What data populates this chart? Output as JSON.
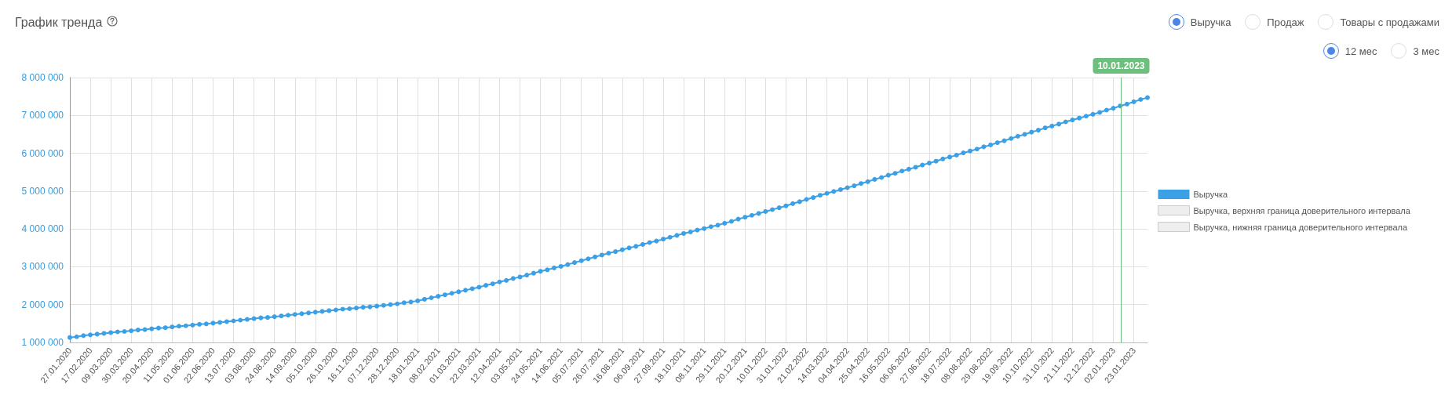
{
  "chart_data": {
    "type": "line",
    "title": "График тренда",
    "annotations": [
      "Выручка",
      "Продаж",
      "Товары с продажами",
      "12 мес",
      "3 мес"
    ],
    "x": [
      "2020-01-27",
      "2020-02-03",
      "2020-02-10",
      "2020-02-17",
      "2020-02-24",
      "2020-03-02",
      "2020-03-09",
      "2020-03-16",
      "2020-03-23",
      "2020-03-30",
      "2020-04-06",
      "2020-04-13",
      "2020-04-20",
      "2020-04-27",
      "2020-05-04",
      "2020-05-11",
      "2020-05-18",
      "2020-05-25",
      "2020-06-01",
      "2020-06-08",
      "2020-06-15",
      "2020-06-22",
      "2020-06-29",
      "2020-07-06",
      "2020-07-13",
      "2020-07-20",
      "2020-07-27",
      "2020-08-03",
      "2020-08-10",
      "2020-08-17",
      "2020-08-24",
      "2020-08-31",
      "2020-09-07",
      "2020-09-14",
      "2020-09-21",
      "2020-09-28",
      "2020-10-05",
      "2020-10-12",
      "2020-10-19",
      "2020-10-26",
      "2020-11-02",
      "2020-11-09",
      "2020-11-16",
      "2020-11-23",
      "2020-11-30",
      "2020-12-07",
      "2020-12-14",
      "2020-12-21",
      "2020-12-28",
      "2021-01-04",
      "2021-01-11",
      "2021-01-18",
      "2021-01-25",
      "2021-02-01",
      "2021-02-08",
      "2021-02-15",
      "2021-02-22",
      "2021-03-01",
      "2021-03-08",
      "2021-03-15",
      "2021-03-22",
      "2021-03-29",
      "2021-04-05",
      "2021-04-12",
      "2021-04-19",
      "2021-04-26",
      "2021-05-03",
      "2021-05-10",
      "2021-05-17",
      "2021-05-24",
      "2021-05-31",
      "2021-06-07",
      "2021-06-14",
      "2021-06-21",
      "2021-06-28",
      "2021-07-05",
      "2021-07-12",
      "2021-07-19",
      "2021-07-26",
      "2021-08-02",
      "2021-08-09",
      "2021-08-16",
      "2021-08-23",
      "2021-08-30",
      "2021-09-06",
      "2021-09-13",
      "2021-09-20",
      "2021-09-27",
      "2021-10-04",
      "2021-10-11",
      "2021-10-18",
      "2021-10-25",
      "2021-11-01",
      "2021-11-08",
      "2021-11-15",
      "2021-11-22",
      "2021-11-29",
      "2021-12-06",
      "2021-12-13",
      "2021-12-20",
      "2021-12-27",
      "2022-01-03",
      "2022-01-10",
      "2022-01-17",
      "2022-01-24",
      "2022-01-31",
      "2022-02-07",
      "2022-02-14",
      "2022-02-21",
      "2022-02-28",
      "2022-03-07",
      "2022-03-14",
      "2022-03-21",
      "2022-03-28",
      "2022-04-04",
      "2022-04-11",
      "2022-04-18",
      "2022-04-25",
      "2022-05-02",
      "2022-05-09",
      "2022-05-16",
      "2022-05-23",
      "2022-05-30",
      "2022-06-06",
      "2022-06-13",
      "2022-06-20",
      "2022-06-27",
      "2022-07-04",
      "2022-07-11",
      "2022-07-18",
      "2022-07-25",
      "2022-08-01",
      "2022-08-08",
      "2022-08-15",
      "2022-08-22",
      "2022-08-29",
      "2022-09-05",
      "2022-09-12",
      "2022-09-19",
      "2022-09-26",
      "2022-10-03",
      "2022-10-10",
      "2022-10-17",
      "2022-10-24",
      "2022-10-31",
      "2022-11-07",
      "2022-11-14",
      "2022-11-21",
      "2022-11-28",
      "2022-12-05",
      "2022-12-12",
      "2022-12-19",
      "2022-12-26",
      "2023-01-02",
      "2023-01-09",
      "2023-01-16",
      "2023-01-23",
      "2023-01-30",
      "2023-02-06"
    ],
    "series": [
      {
        "name": "Выручка",
        "color": "#3ba0e6",
        "values": [
          1130000,
          1150000,
          1180000,
          1200000,
          1220000,
          1240000,
          1260000,
          1280000,
          1290000,
          1310000,
          1330000,
          1340000,
          1360000,
          1380000,
          1390000,
          1410000,
          1430000,
          1440000,
          1460000,
          1480000,
          1490000,
          1510000,
          1530000,
          1550000,
          1570000,
          1590000,
          1610000,
          1630000,
          1650000,
          1660000,
          1680000,
          1700000,
          1720000,
          1740000,
          1760000,
          1780000,
          1800000,
          1820000,
          1840000,
          1860000,
          1880000,
          1890000,
          1910000,
          1930000,
          1940000,
          1960000,
          1980000,
          2000000,
          2020000,
          2050000,
          2070000,
          2100000,
          2140000,
          2180000,
          2220000,
          2260000,
          2300000,
          2340000,
          2380000,
          2420000,
          2460000,
          2510000,
          2550000,
          2600000,
          2640000,
          2690000,
          2730000,
          2780000,
          2830000,
          2880000,
          2920000,
          2970000,
          3010000,
          3060000,
          3110000,
          3160000,
          3210000,
          3260000,
          3310000,
          3360000,
          3400000,
          3450000,
          3500000,
          3540000,
          3590000,
          3640000,
          3680000,
          3730000,
          3780000,
          3830000,
          3880000,
          3920000,
          3970000,
          4010000,
          4060000,
          4100000,
          4150000,
          4200000,
          4260000,
          4310000,
          4360000,
          4410000,
          4460000,
          4510000,
          4560000,
          4610000,
          4670000,
          4720000,
          4780000,
          4830000,
          4890000,
          4940000,
          4990000,
          5040000,
          5090000,
          5140000,
          5200000,
          5250000,
          5310000,
          5360000,
          5420000,
          5470000,
          5530000,
          5580000,
          5630000,
          5690000,
          5740000,
          5790000,
          5850000,
          5900000,
          5950000,
          6010000,
          6060000,
          6110000,
          6170000,
          6220000,
          6280000,
          6330000,
          6390000,
          6450000,
          6500000,
          6560000,
          6610000,
          6670000,
          6720000,
          6770000,
          6830000,
          6880000,
          6930000,
          6980000,
          7030000,
          7080000,
          7140000,
          7190000,
          7250000,
          7300000,
          7360000,
          7420000,
          7470000
        ]
      },
      {
        "name": "Выручка, верхняя граница доверительного интервала",
        "color": "#eeeeee",
        "values": [
          null,
          null,
          null,
          null,
          null,
          null,
          null,
          null,
          null,
          null,
          null,
          null,
          null,
          null,
          null,
          null,
          null,
          null,
          null,
          null,
          null,
          null,
          null,
          null,
          null,
          null,
          null,
          null,
          null,
          null,
          null,
          null,
          null,
          null,
          null,
          null,
          null,
          null,
          null,
          null,
          null,
          null,
          null,
          null,
          null,
          null,
          null,
          null,
          null,
          null,
          null,
          null,
          null,
          null,
          null,
          null,
          null,
          null,
          null,
          null,
          null,
          null,
          null,
          null,
          null,
          null,
          null,
          null,
          null,
          null,
          null,
          null,
          null,
          null,
          null,
          null,
          null,
          null,
          null,
          null,
          null,
          null,
          null,
          null,
          null,
          null,
          null,
          null,
          null,
          null,
          null,
          null,
          null,
          null,
          null,
          null,
          null,
          null,
          null,
          null,
          null,
          null,
          null,
          null,
          null,
          null,
          null,
          null,
          null,
          null,
          null,
          null,
          null,
          null,
          null,
          null,
          null,
          null,
          null,
          null,
          null,
          null,
          null,
          null,
          null,
          null,
          null,
          null,
          null,
          null,
          null,
          null,
          null,
          null,
          null,
          null,
          null,
          null,
          null,
          null,
          null,
          null,
          null,
          null,
          null,
          null,
          null,
          null,
          null,
          null,
          null,
          null,
          null,
          null,
          null,
          null,
          null,
          null,
          null
        ]
      },
      {
        "name": "Выручка, нижняя граница доверительного интервала",
        "color": "#eeeeee",
        "values": [
          null,
          null,
          null,
          null,
          null,
          null,
          null,
          null,
          null,
          null,
          null,
          null,
          null,
          null,
          null,
          null,
          null,
          null,
          null,
          null,
          null,
          null,
          null,
          null,
          null,
          null,
          null,
          null,
          null,
          null,
          null,
          null,
          null,
          null,
          null,
          null,
          null,
          null,
          null,
          null,
          null,
          null,
          null,
          null,
          null,
          null,
          null,
          null,
          null,
          null,
          null,
          null,
          null,
          null,
          null,
          null,
          null,
          null,
          null,
          null,
          null,
          null,
          null,
          null,
          null,
          null,
          null,
          null,
          null,
          null,
          null,
          null,
          null,
          null,
          null,
          null,
          null,
          null,
          null,
          null,
          null,
          null,
          null,
          null,
          null,
          null,
          null,
          null,
          null,
          null,
          null,
          null,
          null,
          null,
          null,
          null,
          null,
          null,
          null,
          null,
          null,
          null,
          null,
          null,
          null,
          null,
          null,
          null,
          null,
          null,
          null,
          null,
          null,
          null,
          null,
          null,
          null,
          null,
          null,
          null,
          null,
          null,
          null,
          null,
          null,
          null,
          null,
          null,
          null,
          null,
          null,
          null,
          null,
          null,
          null,
          null,
          null,
          null,
          null,
          null,
          null,
          null,
          null,
          null,
          null,
          null,
          null,
          null,
          null,
          null,
          null,
          null,
          null,
          null,
          null,
          null,
          null,
          null,
          null
        ]
      }
    ],
    "xlim": [
      "2020-01-27",
      "2023-02-06"
    ],
    "xticks": [
      {
        "value": "2020-01-27",
        "label": "27.01.2020"
      },
      {
        "value": "2020-02-17",
        "label": "17.02.2020"
      },
      {
        "value": "2020-03-09",
        "label": "09.03.2020"
      },
      {
        "value": "2020-03-30",
        "label": "30.03.2020"
      },
      {
        "value": "2020-04-20",
        "label": "20.04.2020"
      },
      {
        "value": "2020-05-11",
        "label": "11.05.2020"
      },
      {
        "value": "2020-06-01",
        "label": "01.06.2020"
      },
      {
        "value": "2020-06-22",
        "label": "22.06.2020"
      },
      {
        "value": "2020-07-13",
        "label": "13.07.2020"
      },
      {
        "value": "2020-08-03",
        "label": "03.08.2020"
      },
      {
        "value": "2020-08-24",
        "label": "24.08.2020"
      },
      {
        "value": "2020-09-14",
        "label": "14.09.2020"
      },
      {
        "value": "2020-10-05",
        "label": "05.10.2020"
      },
      {
        "value": "2020-10-26",
        "label": "26.10.2020"
      },
      {
        "value": "2020-11-16",
        "label": "16.11.2020"
      },
      {
        "value": "2020-12-07",
        "label": "07.12.2020"
      },
      {
        "value": "2020-12-28",
        "label": "28.12.2020"
      },
      {
        "value": "2021-01-18",
        "label": "18.01.2021"
      },
      {
        "value": "2021-02-08",
        "label": "08.02.2021"
      },
      {
        "value": "2021-03-01",
        "label": "01.03.2021"
      },
      {
        "value": "2021-03-22",
        "label": "22.03.2021"
      },
      {
        "value": "2021-04-12",
        "label": "12.04.2021"
      },
      {
        "value": "2021-05-03",
        "label": "03.05.2021"
      },
      {
        "value": "2021-05-24",
        "label": "24.05.2021"
      },
      {
        "value": "2021-06-14",
        "label": "14.06.2021"
      },
      {
        "value": "2021-07-05",
        "label": "05.07.2021"
      },
      {
        "value": "2021-07-26",
        "label": "26.07.2021"
      },
      {
        "value": "2021-08-16",
        "label": "16.08.2021"
      },
      {
        "value": "2021-09-06",
        "label": "06.09.2021"
      },
      {
        "value": "2021-09-27",
        "label": "27.09.2021"
      },
      {
        "value": "2021-10-18",
        "label": "18.10.2021"
      },
      {
        "value": "2021-11-08",
        "label": "08.11.2021"
      },
      {
        "value": "2021-11-29",
        "label": "29.11.2021"
      },
      {
        "value": "2021-12-20",
        "label": "20.12.2021"
      },
      {
        "value": "2022-01-10",
        "label": "10.01.2022"
      },
      {
        "value": "2022-01-31",
        "label": "31.01.2022"
      },
      {
        "value": "2022-02-21",
        "label": "21.02.2022"
      },
      {
        "value": "2022-03-14",
        "label": "14.03.2022"
      },
      {
        "value": "2022-04-04",
        "label": "04.04.2022"
      },
      {
        "value": "2022-04-25",
        "label": "25.04.2022"
      },
      {
        "value": "2022-05-16",
        "label": "16.05.2022"
      },
      {
        "value": "2022-06-06",
        "label": "06.06.2022"
      },
      {
        "value": "2022-06-27",
        "label": "27.06.2022"
      },
      {
        "value": "2022-07-18",
        "label": "18.07.2022"
      },
      {
        "value": "2022-08-08",
        "label": "08.08.2022"
      },
      {
        "value": "2022-08-29",
        "label": "29.08.2022"
      },
      {
        "value": "2022-09-19",
        "label": "19.09.2022"
      },
      {
        "value": "2022-10-10",
        "label": "10.10.2022"
      },
      {
        "value": "2022-10-31",
        "label": "31.10.2022"
      },
      {
        "value": "2022-11-21",
        "label": "21.11.2022"
      },
      {
        "value": "2022-12-12",
        "label": "12.12.2022"
      },
      {
        "value": "2023-01-02",
        "label": "02.01.2023"
      },
      {
        "value": "2023-01-23",
        "label": "23.01.2023"
      }
    ],
    "ylim": [
      1000000,
      8000000
    ],
    "yticks": [
      {
        "value": 1000000,
        "label": "1 000 000"
      },
      {
        "value": 2000000,
        "label": "2 000 000"
      },
      {
        "value": 3000000,
        "label": "3 000 000"
      },
      {
        "value": 4000000,
        "label": "4 000 000"
      },
      {
        "value": 5000000,
        "label": "5 000 000"
      },
      {
        "value": 6000000,
        "label": "6 000 000"
      },
      {
        "value": 7000000,
        "label": "7 000 000"
      },
      {
        "value": 8000000,
        "label": "8 000 000"
      }
    ],
    "ref_lines": [
      {
        "axis": "x",
        "value": "2023-01-10",
        "label": "10.01.2023",
        "color": "#6dbf7e"
      }
    ],
    "grid": true,
    "legend": "right",
    "marker": "circle"
  }
}
